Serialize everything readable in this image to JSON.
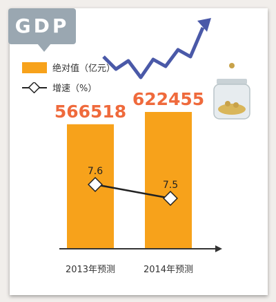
{
  "colors": {
    "bar": "#f7a21b",
    "value_text": "#ef6a3c",
    "line": "#222222",
    "tag": "#9aa7b1",
    "arrow": "#4a59a8"
  },
  "title": "GDP",
  "chart_data": {
    "type": "bar",
    "categories": [
      "2013年预测",
      "2014年预测"
    ],
    "series": [
      {
        "name": "绝对值（亿元）",
        "type": "bar",
        "values": [
          566518,
          622455
        ]
      },
      {
        "name": "增速（%）",
        "type": "line",
        "values": [
          7.6,
          7.5
        ]
      }
    ],
    "legend": "top-left"
  },
  "legend": {
    "bar_label": "绝对值（亿元）",
    "line_label": "增速（%）"
  }
}
